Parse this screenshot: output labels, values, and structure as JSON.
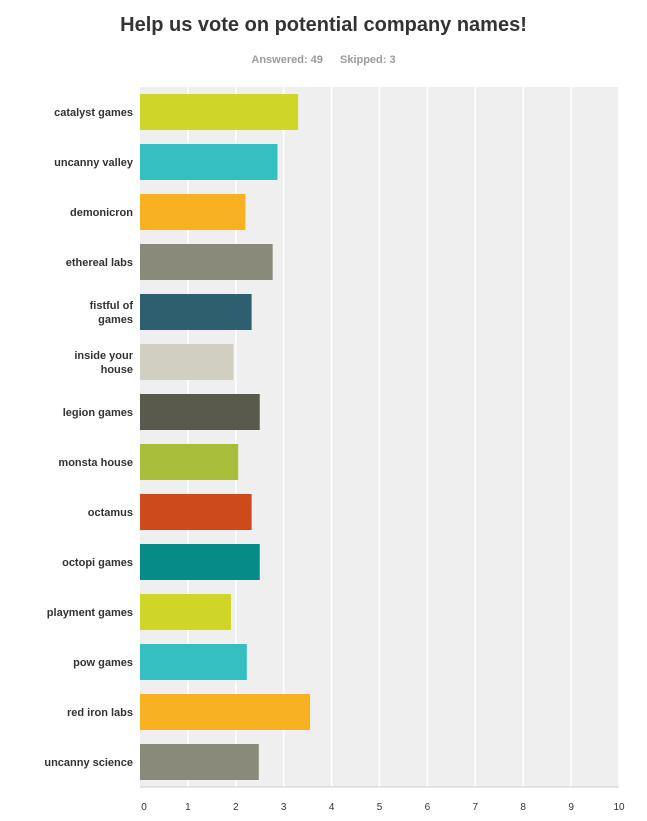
{
  "header": {
    "title": "Help us vote on potential company names!",
    "answered_label": "Answered: 49",
    "skipped_label": "Skipped: 3"
  },
  "colors": {
    "plot_background": "#efefef",
    "gridline": "#ffffff",
    "axis": "#cccccc"
  },
  "chart_data": {
    "type": "bar",
    "orientation": "horizontal",
    "title": "Help us vote on potential company names!",
    "xlabel": "",
    "ylabel": "",
    "xlim": [
      0,
      10
    ],
    "x_ticks": [
      0,
      1,
      2,
      3,
      4,
      5,
      6,
      7,
      8,
      9,
      10
    ],
    "grid": true,
    "legend": "none",
    "categories": [
      "catalyst games",
      "uncanny valley",
      "demonicron",
      "ethereal labs",
      "fistful of games",
      "inside your house",
      "legion games",
      "monsta house",
      "octamus",
      "octopi games",
      "playment games",
      "pow games",
      "red iron labs",
      "uncanny science"
    ],
    "category_label_lines": [
      [
        "catalyst games"
      ],
      [
        "uncanny valley"
      ],
      [
        "demonicron"
      ],
      [
        "ethereal labs"
      ],
      [
        "fistful of",
        "games"
      ],
      [
        "inside your",
        "house"
      ],
      [
        "legion games"
      ],
      [
        "monsta house"
      ],
      [
        "octamus"
      ],
      [
        "octopi games"
      ],
      [
        "playment games"
      ],
      [
        "pow games"
      ],
      [
        "red iron labs"
      ],
      [
        "uncanny science"
      ]
    ],
    "values": [
      3.3,
      2.87,
      2.2,
      2.77,
      2.33,
      1.95,
      2.5,
      2.05,
      2.33,
      2.5,
      1.9,
      2.23,
      3.55,
      2.48
    ],
    "bar_colors": [
      "#d0d628",
      "#35bfc0",
      "#f7b122",
      "#8a8a7a",
      "#2e5f6e",
      "#d0cfc1",
      "#5a5a4c",
      "#a8bd3a",
      "#cc4a1c",
      "#068b89",
      "#d0d628",
      "#35bfc0",
      "#f7b122",
      "#8a8a7a"
    ]
  }
}
